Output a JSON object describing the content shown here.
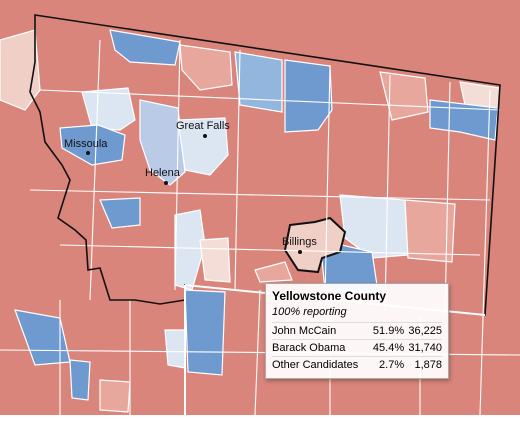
{
  "cities": [
    {
      "label": "Missoula"
    },
    {
      "label": "Great Falls"
    },
    {
      "label": "Helena"
    },
    {
      "label": "Billings"
    }
  ],
  "tooltip": {
    "title": "Yellowstone County",
    "subtitle": "100% reporting",
    "rows": [
      [
        "John McCain",
        "51.9%",
        "36,225"
      ],
      [
        "Barack Obama",
        "45.4%",
        "31,740"
      ],
      [
        "Other Candidates",
        "2.7%",
        "1,878"
      ]
    ]
  }
}
